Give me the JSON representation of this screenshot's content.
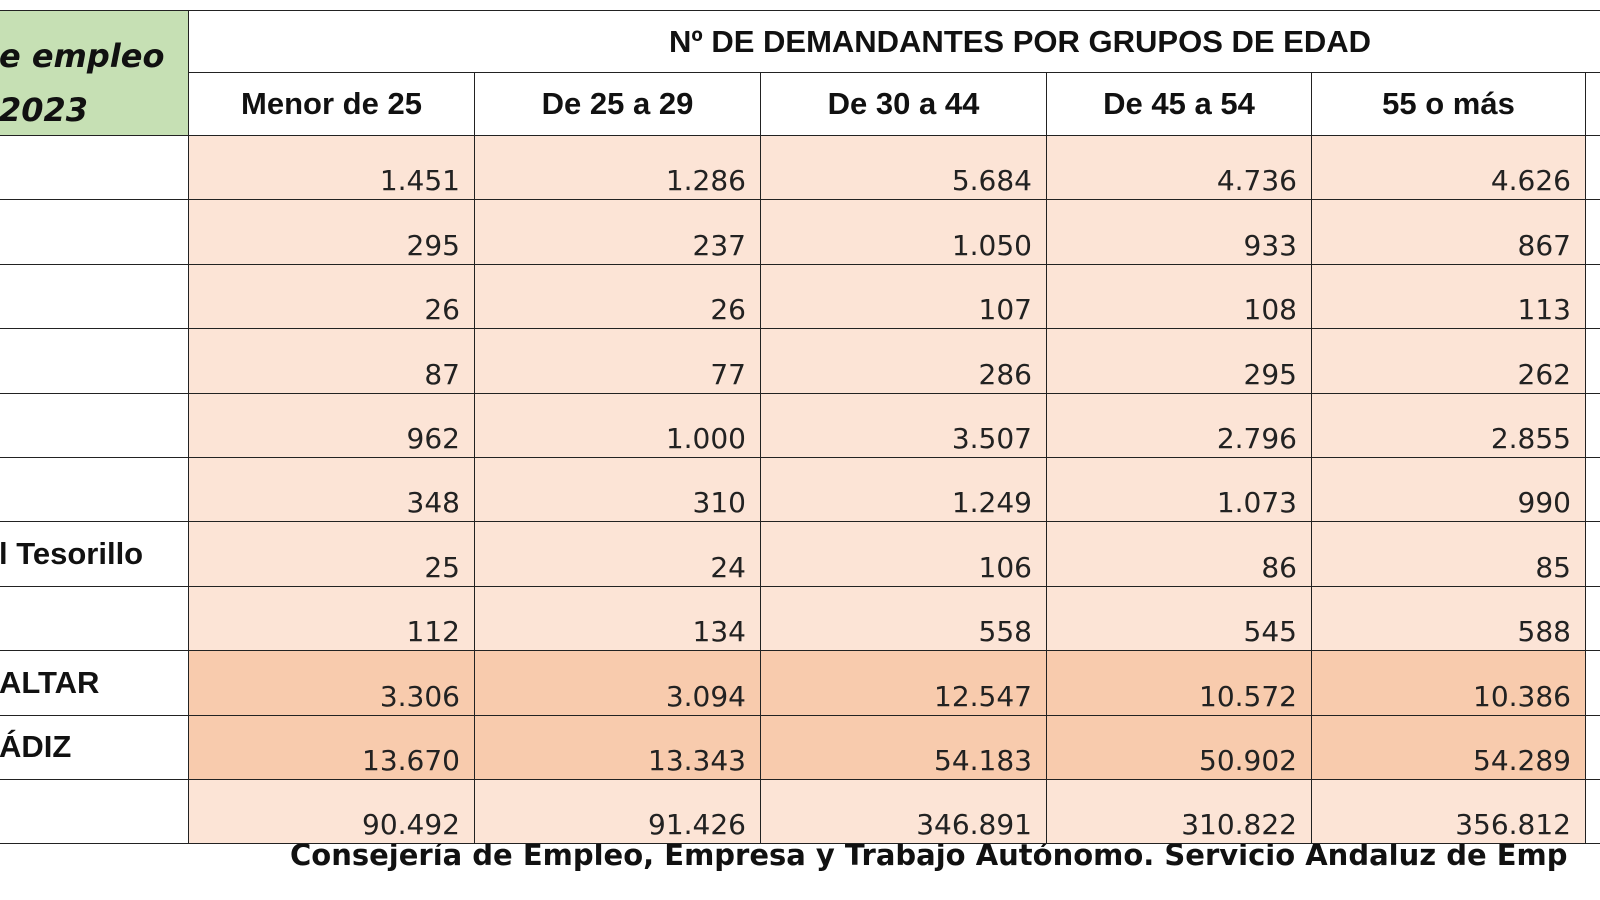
{
  "header": {
    "left_lines": [
      "e empleo",
      "2023"
    ],
    "title": "Nº DE DEMANDANTES POR GRUPOS DE EDAD"
  },
  "table": {
    "columns": [
      "Menor de 25",
      "De 25 a 29",
      "De 30 a 44",
      "De 45 a 54",
      "55 o más"
    ],
    "rows": [
      {
        "cells": [
          "1.451",
          "1.286",
          "5.684",
          "4.736",
          "4.626"
        ]
      },
      {
        "cells": [
          "295",
          "237",
          "1.050",
          "933",
          "867"
        ]
      },
      {
        "cells": [
          "26",
          "26",
          "107",
          "108",
          "113"
        ]
      },
      {
        "cells": [
          "87",
          "77",
          "286",
          "295",
          "262"
        ]
      },
      {
        "cells": [
          "962",
          "1.000",
          "3.507",
          "2.796",
          "2.855"
        ]
      },
      {
        "cells": [
          "348",
          "310",
          "1.249",
          "1.073",
          "990"
        ]
      },
      {
        "label": "l Tesorillo",
        "cells": [
          "25",
          "24",
          "106",
          "86",
          "85"
        ]
      },
      {
        "cells": [
          "112",
          "134",
          "558",
          "545",
          "588"
        ]
      },
      {
        "label": "ALTAR",
        "cells": [
          "3.306",
          "3.094",
          "12.547",
          "10.572",
          "10.386"
        ]
      },
      {
        "label": "ÁDIZ",
        "cells": [
          "13.670",
          "13.343",
          "54.183",
          "50.902",
          "54.289"
        ]
      },
      {
        "cells": [
          "90.492",
          "91.426",
          "346.891",
          "310.822",
          "356.812"
        ]
      }
    ]
  },
  "footer": "Consejería de Empleo, Empresa y Trabajo Autónomo. Servicio Andaluz de Emp"
}
